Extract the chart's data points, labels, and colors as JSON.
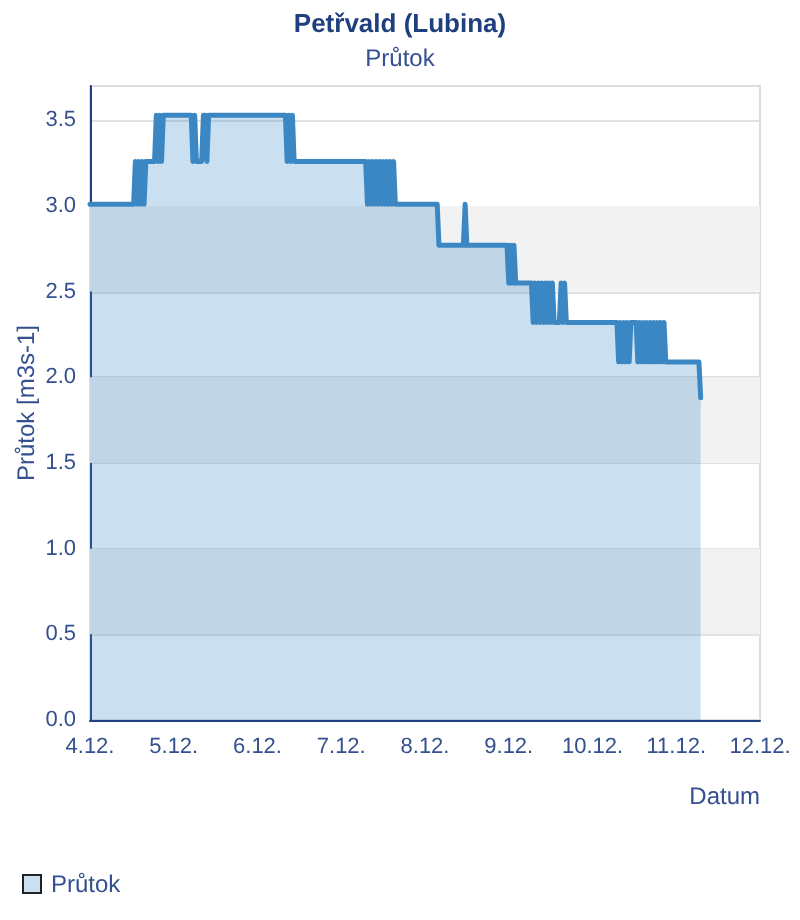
{
  "chart_data": {
    "type": "area",
    "title": "Petřvald (Lubina)",
    "subtitle": "Průtok",
    "xlabel": "Datum",
    "ylabel": "Průtok [m3s-1]",
    "x": [
      "--12-04T00:00",
      "--12-04T12:30",
      "--12-04T13:00",
      "--12-04T13:30",
      "--12-04T14:00",
      "--12-04T14:30",
      "--12-04T15:00",
      "--12-04T15:30",
      "--12-04T16:00",
      "--12-04T18:30",
      "--12-04T19:00",
      "--12-04T19:30",
      "--12-04T20:00",
      "--12-04T20:30",
      "--12-04T21:00",
      "--12-05T05:00",
      "--12-05T05:30",
      "--12-05T06:00",
      "--12-05T06:30",
      "--12-05T08:00",
      "--12-05T08:30",
      "--12-05T09:00",
      "--12-05T09:30",
      "--12-05T10:00",
      "--12-06T08:00",
      "--12-06T08:30",
      "--12-06T09:00",
      "--12-06T09:30",
      "--12-06T10:00",
      "--12-06T10:30",
      "--12-07T07:00",
      "--12-07T07:30",
      "--12-07T08:00",
      "--12-07T08:30",
      "--12-07T09:00",
      "--12-07T09:30",
      "--12-07T10:00",
      "--12-07T10:30",
      "--12-07T11:00",
      "--12-07T11:30",
      "--12-07T12:00",
      "--12-07T12:30",
      "--12-07T13:00",
      "--12-07T13:30",
      "--12-07T14:00",
      "--12-07T14:30",
      "--12-07T15:00",
      "--12-07T15:30",
      "--12-08T03:30",
      "--12-08T04:00",
      "--12-08T11:00",
      "--12-08T11:30",
      "--12-08T12:00",
      "--12-08T23:30",
      "--12-09T00:00",
      "--12-09T00:30",
      "--12-09T01:00",
      "--12-09T01:30",
      "--12-09T02:00",
      "--12-09T06:30",
      "--12-09T07:00",
      "--12-09T07:30",
      "--12-09T08:00",
      "--12-09T08:30",
      "--12-09T09:00",
      "--12-09T09:30",
      "--12-09T10:00",
      "--12-09T10:30",
      "--12-09T11:00",
      "--12-09T11:30",
      "--12-09T12:00",
      "--12-09T12:30",
      "--12-09T13:00",
      "--12-09T14:30",
      "--12-09T15:00",
      "--12-09T15:30",
      "--12-09T16:00",
      "--12-09T16:30",
      "--12-10T07:00",
      "--12-10T07:30",
      "--12-10T08:00",
      "--12-10T08:30",
      "--12-10T09:00",
      "--12-10T09:30",
      "--12-10T10:00",
      "--12-10T10:30",
      "--12-10T11:00",
      "--12-10T12:30",
      "--12-10T13:00",
      "--12-10T13:30",
      "--12-10T14:00",
      "--12-10T14:30",
      "--12-10T15:00",
      "--12-10T15:30",
      "--12-10T16:00",
      "--12-10T16:30",
      "--12-10T17:00",
      "--12-10T17:30",
      "--12-10T18:00",
      "--12-10T18:30",
      "--12-10T19:00",
      "--12-10T19:30",
      "--12-10T20:00",
      "--12-10T20:30",
      "--12-10T21:00",
      "--12-11T06:30",
      "--12-11T07:00"
    ],
    "series": [
      {
        "name": "Průtok",
        "color": "#3a87c4",
        "values": [
          3.01,
          3.01,
          3.26,
          3.01,
          3.26,
          3.01,
          3.26,
          3.01,
          3.26,
          3.26,
          3.53,
          3.26,
          3.53,
          3.26,
          3.53,
          3.53,
          3.26,
          3.53,
          3.26,
          3.26,
          3.53,
          3.53,
          3.26,
          3.53,
          3.53,
          3.26,
          3.53,
          3.26,
          3.53,
          3.26,
          3.26,
          3.01,
          3.26,
          3.01,
          3.26,
          3.01,
          3.26,
          3.01,
          3.26,
          3.01,
          3.26,
          3.01,
          3.26,
          3.01,
          3.26,
          3.01,
          3.26,
          3.01,
          3.01,
          2.77,
          2.77,
          3.01,
          2.77,
          2.77,
          2.55,
          2.77,
          2.55,
          2.77,
          2.55,
          2.55,
          2.32,
          2.55,
          2.32,
          2.55,
          2.32,
          2.55,
          2.32,
          2.55,
          2.32,
          2.55,
          2.32,
          2.55,
          2.32,
          2.32,
          2.55,
          2.32,
          2.55,
          2.32,
          2.32,
          2.09,
          2.32,
          2.09,
          2.32,
          2.09,
          2.32,
          2.09,
          2.32,
          2.32,
          2.09,
          2.32,
          2.09,
          2.32,
          2.09,
          2.32,
          2.09,
          2.32,
          2.09,
          2.32,
          2.09,
          2.32,
          2.09,
          2.32,
          2.09,
          2.32,
          2.09,
          2.09,
          1.88
        ]
      }
    ],
    "xlim": [
      "--12-04",
      "--12-12"
    ],
    "xticks": [
      {
        "value": "--12-04",
        "label": "4.12."
      },
      {
        "value": "--12-05",
        "label": "5.12."
      },
      {
        "value": "--12-06",
        "label": "6.12."
      },
      {
        "value": "--12-07",
        "label": "7.12."
      },
      {
        "value": "--12-08",
        "label": "8.12."
      },
      {
        "value": "--12-09",
        "label": "9.12."
      },
      {
        "value": "--12-10",
        "label": "10.12."
      },
      {
        "value": "--12-11",
        "label": "11.12."
      },
      {
        "value": "--12-12",
        "label": "12.12."
      }
    ],
    "ylim": [
      0,
      3.7
    ],
    "yticks": [
      {
        "value": 0,
        "label": "0.0"
      },
      0.5,
      {
        "value": 1,
        "label": "1.0"
      },
      1.5,
      {
        "value": 2,
        "label": "2.0"
      },
      2.5,
      {
        "value": 3,
        "label": "3.0"
      },
      3.5
    ],
    "bands": [
      {
        "axis": "y",
        "from": 0.5,
        "to": 1,
        "color": "#f2f2f2"
      },
      {
        "axis": "y",
        "from": 1.5,
        "to": 2,
        "color": "#f2f2f2"
      },
      {
        "axis": "y",
        "from": 2.5,
        "to": 3,
        "color": "#f2f2f2"
      }
    ],
    "grid": "y",
    "legend": "bottom left",
    "marker": "none",
    "line_style": "solid"
  }
}
